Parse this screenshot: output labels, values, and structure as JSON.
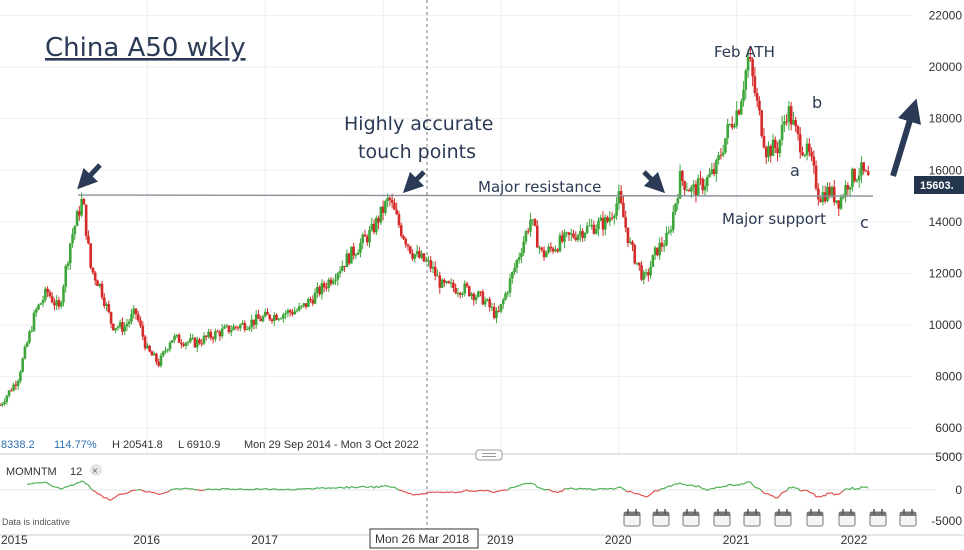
{
  "title": "China A50 wkly",
  "info_bar": {
    "last": "8338.2",
    "pct": "114.77%",
    "high": "H 20541.8",
    "low": "L 6910.9",
    "range": "Mon 29 Sep 2014 - Mon 3 Oct 2022"
  },
  "price_tag": "15603.",
  "crosshair_date": "Mon 26 Mar 2018",
  "indicator": {
    "name": "MOMNTM",
    "period": "12",
    "close_symbol": "×"
  },
  "data_note": "Data is indicative",
  "annotations": {
    "highly_accurate_1": "Highly accurate",
    "highly_accurate_2": "touch points",
    "major_resistance": "Major resistance",
    "major_support": "Major support",
    "feb_ath": "Feb ATH",
    "wave_a": "a",
    "wave_b": "b",
    "wave_c": "c"
  },
  "colors": {
    "up": "#3ea53a",
    "down": "#d42a2a",
    "annotation": "#2b3a55",
    "momentum_pos": "#4caf50",
    "momentum_neg": "#e05050"
  },
  "chart_data": {
    "type": "candlestick",
    "title": "China A50 wkly",
    "x_axis": {
      "ticks": [
        "2015",
        "2016",
        "2017",
        "2019",
        "2020",
        "2021",
        "2022"
      ]
    },
    "y_axis": {
      "ticks": [
        6000,
        8000,
        10000,
        12000,
        14000,
        16000,
        18000,
        20000,
        22000
      ],
      "range": [
        5000,
        22600
      ]
    },
    "momentum_axis": {
      "ticks": [
        "5000",
        "0",
        "-5000"
      ]
    },
    "horizontal_line": {
      "value": 15000,
      "label": "Major resistance"
    },
    "price_path": [
      {
        "date": 2014.75,
        "close": 6900
      },
      {
        "date": 2014.9,
        "close": 7900
      },
      {
        "date": 2015.05,
        "close": 10500
      },
      {
        "date": 2015.15,
        "close": 11300
      },
      {
        "date": 2015.25,
        "close": 10600
      },
      {
        "date": 2015.35,
        "close": 13300
      },
      {
        "date": 2015.45,
        "close": 14900
      },
      {
        "date": 2015.52,
        "close": 12200
      },
      {
        "date": 2015.6,
        "close": 11500
      },
      {
        "date": 2015.7,
        "close": 10000
      },
      {
        "date": 2015.8,
        "close": 9900
      },
      {
        "date": 2015.9,
        "close": 10500
      },
      {
        "date": 2016.0,
        "close": 9000
      },
      {
        "date": 2016.1,
        "close": 8500
      },
      {
        "date": 2016.2,
        "close": 9500
      },
      {
        "date": 2016.4,
        "close": 9300
      },
      {
        "date": 2016.6,
        "close": 9700
      },
      {
        "date": 2016.8,
        "close": 10000
      },
      {
        "date": 2017.0,
        "close": 10300
      },
      {
        "date": 2017.3,
        "close": 10600
      },
      {
        "date": 2017.5,
        "close": 11500
      },
      {
        "date": 2017.7,
        "close": 12600
      },
      {
        "date": 2017.9,
        "close": 13600
      },
      {
        "date": 2018.05,
        "close": 14900
      },
      {
        "date": 2018.15,
        "close": 13700
      },
      {
        "date": 2018.25,
        "close": 12800
      },
      {
        "date": 2018.4,
        "close": 12300
      },
      {
        "date": 2018.5,
        "close": 11500
      },
      {
        "date": 2018.7,
        "close": 11400
      },
      {
        "date": 2018.85,
        "close": 11000
      },
      {
        "date": 2018.97,
        "close": 10300
      },
      {
        "date": 2019.1,
        "close": 12000
      },
      {
        "date": 2019.25,
        "close": 14100
      },
      {
        "date": 2019.35,
        "close": 12700
      },
      {
        "date": 2019.5,
        "close": 13200
      },
      {
        "date": 2019.7,
        "close": 13700
      },
      {
        "date": 2019.9,
        "close": 14000
      },
      {
        "date": 2020.0,
        "close": 14900
      },
      {
        "date": 2020.1,
        "close": 13000
      },
      {
        "date": 2020.22,
        "close": 11700
      },
      {
        "date": 2020.32,
        "close": 12900
      },
      {
        "date": 2020.42,
        "close": 13400
      },
      {
        "date": 2020.52,
        "close": 15700
      },
      {
        "date": 2020.62,
        "close": 15200
      },
      {
        "date": 2020.72,
        "close": 15500
      },
      {
        "date": 2020.82,
        "close": 16000
      },
      {
        "date": 2020.92,
        "close": 17500
      },
      {
        "date": 2021.02,
        "close": 18500
      },
      {
        "date": 2021.1,
        "close": 20400
      },
      {
        "date": 2021.17,
        "close": 18600
      },
      {
        "date": 2021.25,
        "close": 16800
      },
      {
        "date": 2021.35,
        "close": 16900
      },
      {
        "date": 2021.43,
        "close": 18400
      },
      {
        "date": 2021.52,
        "close": 17200
      },
      {
        "date": 2021.62,
        "close": 16500
      },
      {
        "date": 2021.7,
        "close": 15000
      },
      {
        "date": 2021.78,
        "close": 15200
      },
      {
        "date": 2021.87,
        "close": 14800
      },
      {
        "date": 2021.95,
        "close": 15600
      },
      {
        "date": 2022.05,
        "close": 16000
      },
      {
        "date": 2022.12,
        "close": 15600
      }
    ]
  }
}
